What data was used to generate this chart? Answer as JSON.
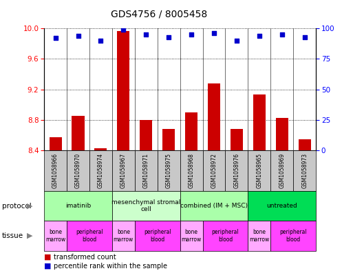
{
  "title": "GDS4756 / 8005458",
  "samples": [
    "GSM1058966",
    "GSM1058970",
    "GSM1058974",
    "GSM1058967",
    "GSM1058971",
    "GSM1058975",
    "GSM1058968",
    "GSM1058972",
    "GSM1058976",
    "GSM1058965",
    "GSM1058969",
    "GSM1058973"
  ],
  "transformed_count": [
    8.57,
    8.85,
    8.43,
    9.97,
    8.8,
    8.68,
    8.9,
    9.28,
    8.68,
    9.13,
    8.83,
    8.55
  ],
  "percentile_rank": [
    92,
    94,
    90,
    99,
    95,
    93,
    95,
    96,
    90,
    94,
    95,
    93
  ],
  "ylim_left": [
    8.4,
    10.0
  ],
  "ylim_right": [
    0,
    100
  ],
  "yticks_left": [
    8.4,
    8.8,
    9.2,
    9.6,
    10.0
  ],
  "yticks_right": [
    0,
    25,
    50,
    75,
    100
  ],
  "bar_color": "#cc0000",
  "dot_color": "#0000cc",
  "protocols": [
    {
      "label": "imatinib",
      "start": 0,
      "end": 3,
      "color": "#aaffaa"
    },
    {
      "label": "mesenchymal stromal\ncell",
      "start": 3,
      "end": 6,
      "color": "#ccffcc"
    },
    {
      "label": "combined (IM + MSC)",
      "start": 6,
      "end": 9,
      "color": "#aaffaa"
    },
    {
      "label": "untreated",
      "start": 9,
      "end": 12,
      "color": "#00dd55"
    }
  ],
  "tissues": [
    {
      "label": "bone\nmarrow",
      "start": 0,
      "end": 1,
      "color": "#ffaaff"
    },
    {
      "label": "peripheral\nblood",
      "start": 1,
      "end": 3,
      "color": "#ff44ff"
    },
    {
      "label": "bone\nmarrow",
      "start": 3,
      "end": 4,
      "color": "#ffaaff"
    },
    {
      "label": "peripheral\nblood",
      "start": 4,
      "end": 6,
      "color": "#ff44ff"
    },
    {
      "label": "bone\nmarrow",
      "start": 6,
      "end": 7,
      "color": "#ffaaff"
    },
    {
      "label": "peripheral\nblood",
      "start": 7,
      "end": 9,
      "color": "#ff44ff"
    },
    {
      "label": "bone\nmarrow",
      "start": 9,
      "end": 10,
      "color": "#ffaaff"
    },
    {
      "label": "peripheral\nblood",
      "start": 10,
      "end": 12,
      "color": "#ff44ff"
    }
  ],
  "bar_width": 0.55
}
